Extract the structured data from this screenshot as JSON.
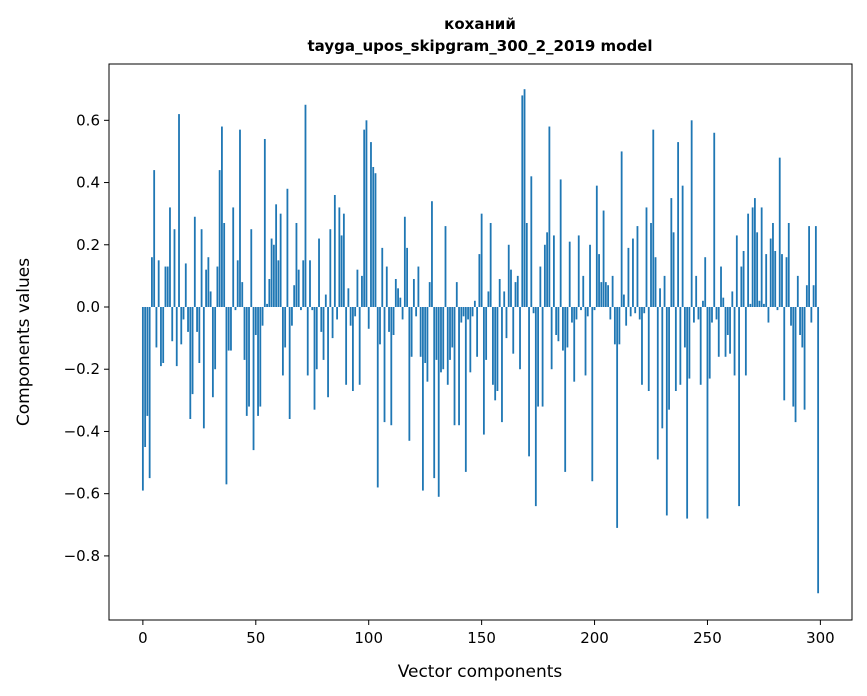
{
  "chart_data": {
    "type": "bar",
    "title": [
      "коханий",
      "tayga_upos_skipgram_300_2_2019 model"
    ],
    "xlabel": "Vector components",
    "ylabel": "Components values",
    "xlim": [
      -15,
      314
    ],
    "ylim": [
      -1.006,
      0.781
    ],
    "xticks": [
      0,
      50,
      100,
      150,
      200,
      250,
      300
    ],
    "yticks": [
      -0.8,
      -0.6,
      -0.4,
      -0.2,
      0.0,
      0.2,
      0.4,
      0.6
    ],
    "ytick_labels": [
      "−0.8",
      "−0.6",
      "−0.4",
      "−0.2",
      "0.0",
      "0.2",
      "0.4",
      "0.6"
    ],
    "grid": false,
    "color": "#1f77b4",
    "values": [
      -0.59,
      -0.45,
      -0.35,
      -0.55,
      0.16,
      0.44,
      -0.13,
      0.15,
      -0.19,
      -0.18,
      0.13,
      0.13,
      0.32,
      -0.11,
      0.25,
      -0.19,
      0.62,
      -0.12,
      -0.04,
      0.14,
      -0.08,
      -0.36,
      -0.28,
      0.29,
      -0.08,
      -0.18,
      0.25,
      -0.39,
      0.12,
      0.16,
      0.05,
      -0.29,
      -0.2,
      0.13,
      0.44,
      0.58,
      0.27,
      -0.57,
      -0.14,
      -0.14,
      0.32,
      -0.01,
      0.15,
      0.57,
      0.08,
      -0.17,
      -0.35,
      -0.32,
      0.25,
      -0.46,
      -0.09,
      -0.35,
      -0.32,
      -0.06,
      0.54,
      0.01,
      0.09,
      0.22,
      0.2,
      0.33,
      0.15,
      0.3,
      -0.22,
      -0.13,
      0.38,
      -0.36,
      -0.06,
      0.07,
      0.27,
      0.12,
      -0.01,
      0.15,
      0.65,
      -0.22,
      0.15,
      -0.01,
      -0.33,
      -0.2,
      0.22,
      -0.08,
      -0.17,
      0.04,
      -0.29,
      0.25,
      -0.1,
      0.36,
      -0.04,
      0.32,
      0.23,
      0.3,
      -0.25,
      0.06,
      -0.06,
      -0.27,
      -0.03,
      0.12,
      -0.25,
      0.1,
      0.57,
      0.6,
      -0.07,
      0.53,
      0.45,
      0.43,
      -0.58,
      -0.12,
      0.19,
      -0.37,
      0.13,
      -0.08,
      -0.38,
      -0.09,
      0.09,
      0.06,
      0.03,
      -0.04,
      0.29,
      0.19,
      -0.43,
      -0.16,
      0.09,
      -0.03,
      0.13,
      -0.16,
      -0.59,
      -0.18,
      -0.24,
      0.08,
      0.34,
      -0.55,
      -0.17,
      -0.61,
      -0.21,
      -0.2,
      0.26,
      -0.25,
      -0.17,
      -0.13,
      -0.38,
      0.08,
      -0.38,
      -0.05,
      -0.03,
      -0.53,
      -0.04,
      -0.21,
      -0.03,
      0.02,
      -0.16,
      0.17,
      0.3,
      -0.41,
      -0.17,
      0.05,
      0.27,
      -0.25,
      -0.3,
      -0.27,
      0.09,
      -0.37,
      0.05,
      -0.1,
      0.2,
      0.12,
      -0.15,
      0.08,
      0.1,
      -0.2,
      0.68,
      0.7,
      0.27,
      -0.48,
      0.42,
      -0.02,
      -0.64,
      -0.32,
      0.13,
      -0.32,
      0.2,
      0.24,
      0.58,
      -0.2,
      0.23,
      -0.09,
      -0.11,
      0.41,
      -0.14,
      -0.53,
      -0.13,
      0.21,
      -0.05,
      -0.24,
      -0.04,
      0.23,
      -0.01,
      0.1,
      -0.22,
      -0.03,
      0.2,
      -0.56,
      -0.01,
      0.39,
      0.17,
      0.08,
      0.31,
      0.08,
      0.07,
      -0.04,
      0.1,
      -0.12,
      -0.71,
      -0.12,
      0.5,
      0.04,
      -0.06,
      0.19,
      -0.03,
      0.22,
      -0.02,
      0.26,
      -0.04,
      -0.25,
      -0.02,
      0.32,
      -0.27,
      0.27,
      0.57,
      0.16,
      -0.49,
      0.06,
      -0.39,
      0.1,
      -0.67,
      -0.33,
      0.35,
      0.24,
      -0.27,
      0.53,
      -0.25,
      0.39,
      -0.13,
      -0.68,
      -0.23,
      0.6,
      -0.05,
      0.1,
      -0.04,
      -0.25,
      0.02,
      0.16,
      -0.68,
      -0.23,
      -0.05,
      0.56,
      -0.04,
      -0.16,
      0.13,
      0.03,
      -0.16,
      -0.09,
      -0.15,
      0.05,
      -0.22,
      0.23,
      -0.64,
      0.13,
      0.18,
      -0.22,
      0.3,
      0.01,
      0.32,
      0.35,
      0.24,
      0.02,
      0.32,
      0.01,
      0.17,
      -0.05,
      0.22,
      0.27,
      0.18,
      -0.01,
      0.48,
      0.17,
      -0.3,
      0.16,
      0.27,
      -0.06,
      -0.32,
      -0.37,
      0.1,
      -0.09,
      -0.13,
      -0.33,
      0.07,
      0.26,
      -0.05,
      0.07,
      0.26,
      -0.92
    ]
  }
}
